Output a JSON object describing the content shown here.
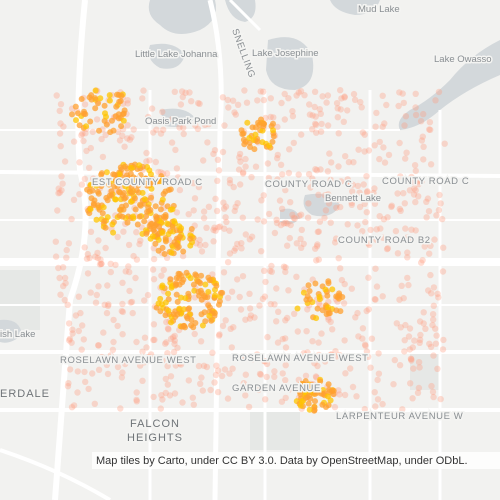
{
  "map": {
    "labels": {
      "mud_lake": "Mud Lake",
      "little_lake_johanna": "Little Lake Johanna",
      "lake_josephine": "Lake Josephine",
      "lake_owasso": "Lake Owasso",
      "oasis_park_pond": "Oasis Park Pond",
      "snelling": "SNELLING",
      "west_county_road_c": "EST COUNTY ROAD C",
      "county_road_c": "COUNTY ROAD C",
      "county_road_c_east": "COUNTY ROAD C",
      "bennett_lake": "Bennett Lake",
      "county_road_b2": "COUNTY ROAD B2",
      "ish_lake": "ish Lake",
      "roselawn_west": "ROSELAWN AVENUE WEST",
      "roselawn_mid": "ROSELAWN AVENUE WEST",
      "erdale": "ERDALE",
      "garden_avenue": "GARDEN AVENUE",
      "larpenteur": "LARPENTEUR AVENUE W",
      "falcon": "FALCON",
      "heights": "HEIGHTS"
    },
    "attribution": "Map tiles by Carto, under CC BY 3.0. Data by OpenStreetMap, under ODbL."
  }
}
